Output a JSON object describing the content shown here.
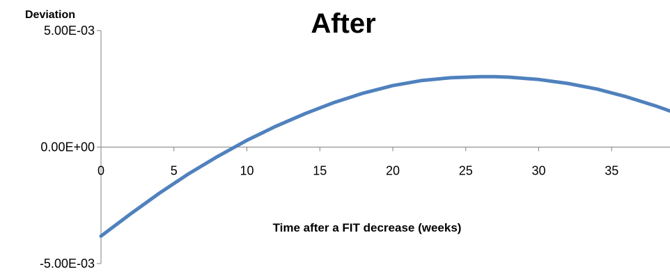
{
  "chart_data": {
    "type": "line",
    "title": "After",
    "ylabel": "Deviation",
    "xlabel": "Time after a FIT decrease (weeks)",
    "xlim": [
      0,
      39
    ],
    "ylim": [
      -0.005,
      0.005
    ],
    "x_ticks": [
      0,
      5,
      10,
      15,
      20,
      25,
      30,
      35
    ],
    "x_tick_labels": [
      "0",
      "5",
      "10",
      "15",
      "20",
      "25",
      "30",
      "35"
    ],
    "y_ticks": [
      -0.005,
      0,
      0.005
    ],
    "y_tick_labels": [
      "-5.00E-03",
      "0.00E+00",
      "5.00E-03"
    ],
    "grid": false,
    "legend": "none",
    "series": [
      {
        "color": "#4F81BD",
        "x": [
          0,
          2,
          4,
          6,
          8,
          10,
          12,
          14,
          16,
          18,
          20,
          22,
          24,
          26,
          27,
          28,
          30,
          32,
          34,
          36,
          38,
          39
        ],
        "y": [
          -0.00382,
          -0.00288,
          -0.00198,
          -0.00115,
          -0.0004,
          0.00029,
          0.0009,
          0.00144,
          0.00192,
          0.00232,
          0.00264,
          0.00286,
          0.00298,
          0.00302,
          0.00302,
          0.003,
          0.0029,
          0.00273,
          0.00249,
          0.00216,
          0.00177,
          0.00155
        ]
      }
    ]
  }
}
